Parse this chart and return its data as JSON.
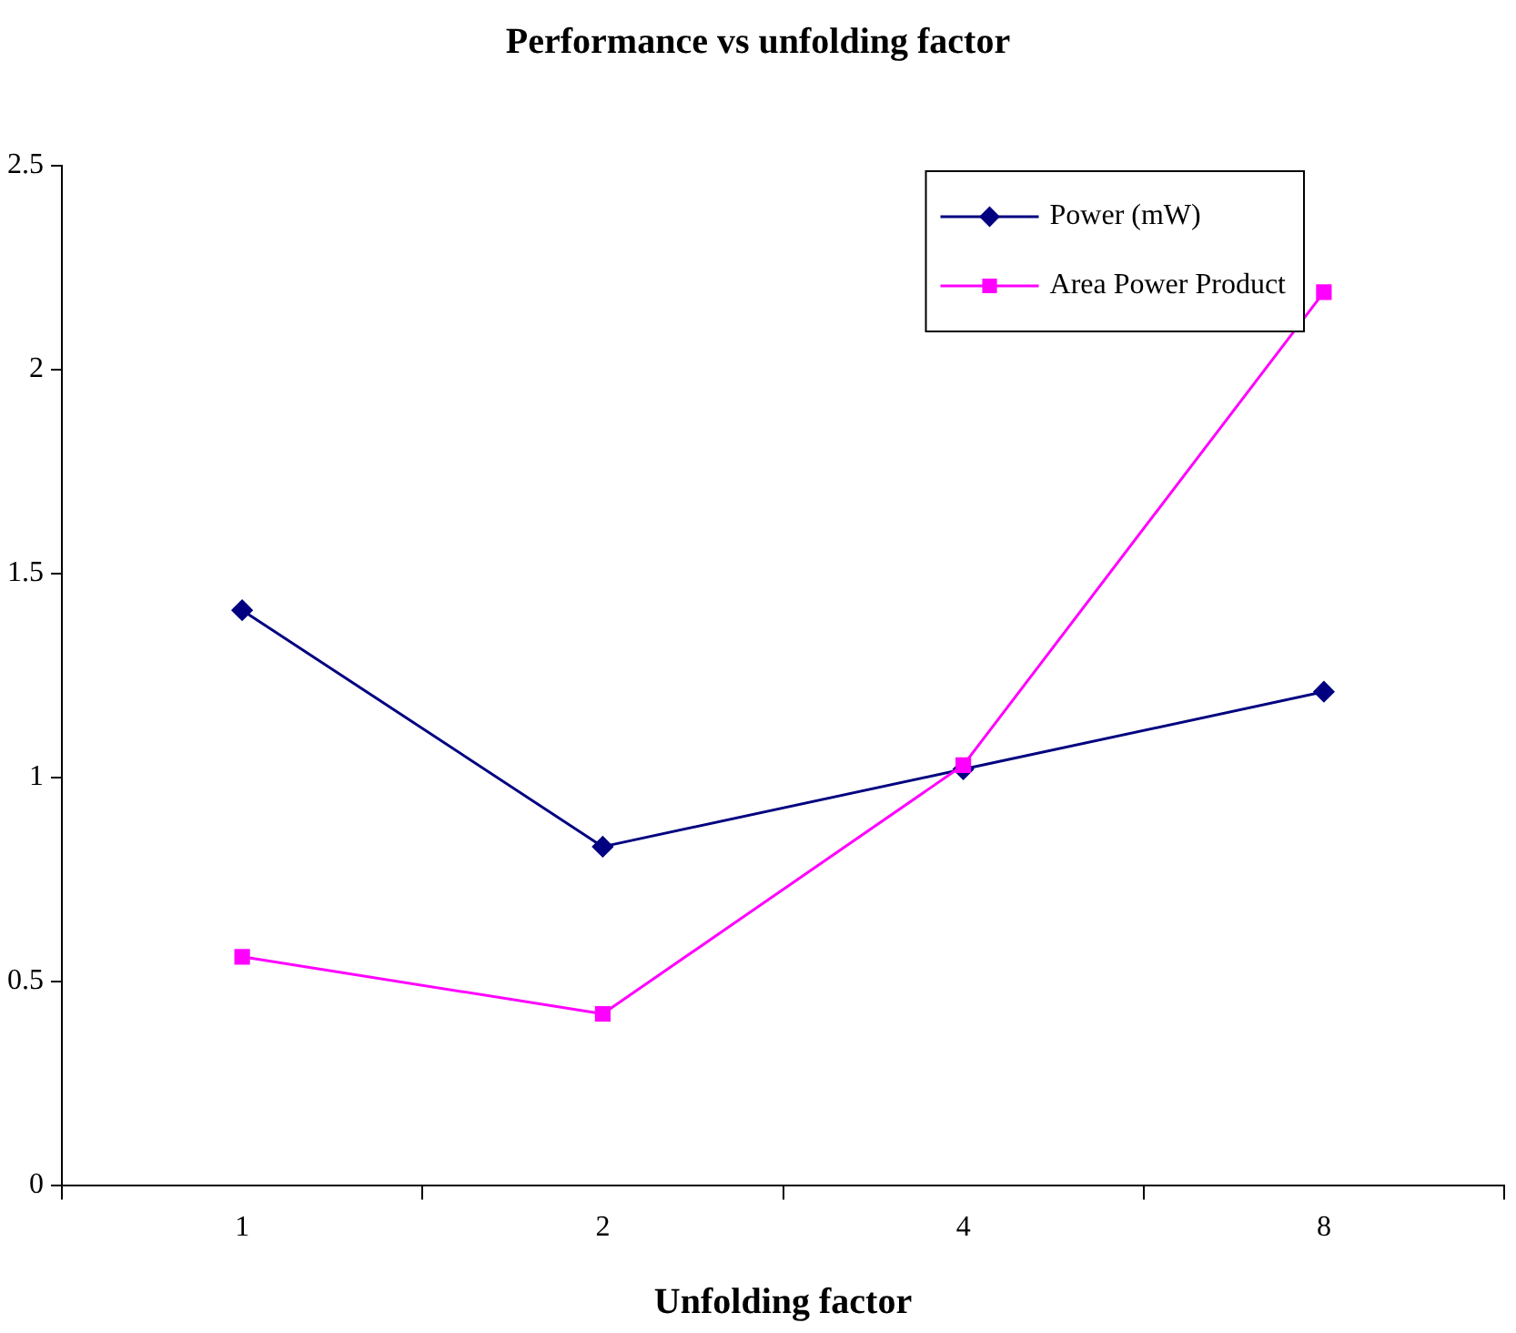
{
  "chart_data": {
    "type": "line",
    "title": "Performance vs unfolding factor",
    "xlabel": "Unfolding factor",
    "categories": [
      "1",
      "2",
      "4",
      "8"
    ],
    "series": [
      {
        "name": "Power (mW)",
        "color": "#000080",
        "marker": "diamond",
        "values": [
          1.41,
          0.83,
          1.02,
          1.21
        ]
      },
      {
        "name": "Area Power Product",
        "color": "#ff00ff",
        "marker": "square",
        "values": [
          0.56,
          0.42,
          1.03,
          2.19
        ]
      }
    ],
    "ylim": [
      0,
      2.5
    ],
    "yticks": [
      0,
      0.5,
      1,
      1.5,
      2,
      2.5
    ],
    "grid": false,
    "legend": "top right",
    "line_style": "solid"
  }
}
